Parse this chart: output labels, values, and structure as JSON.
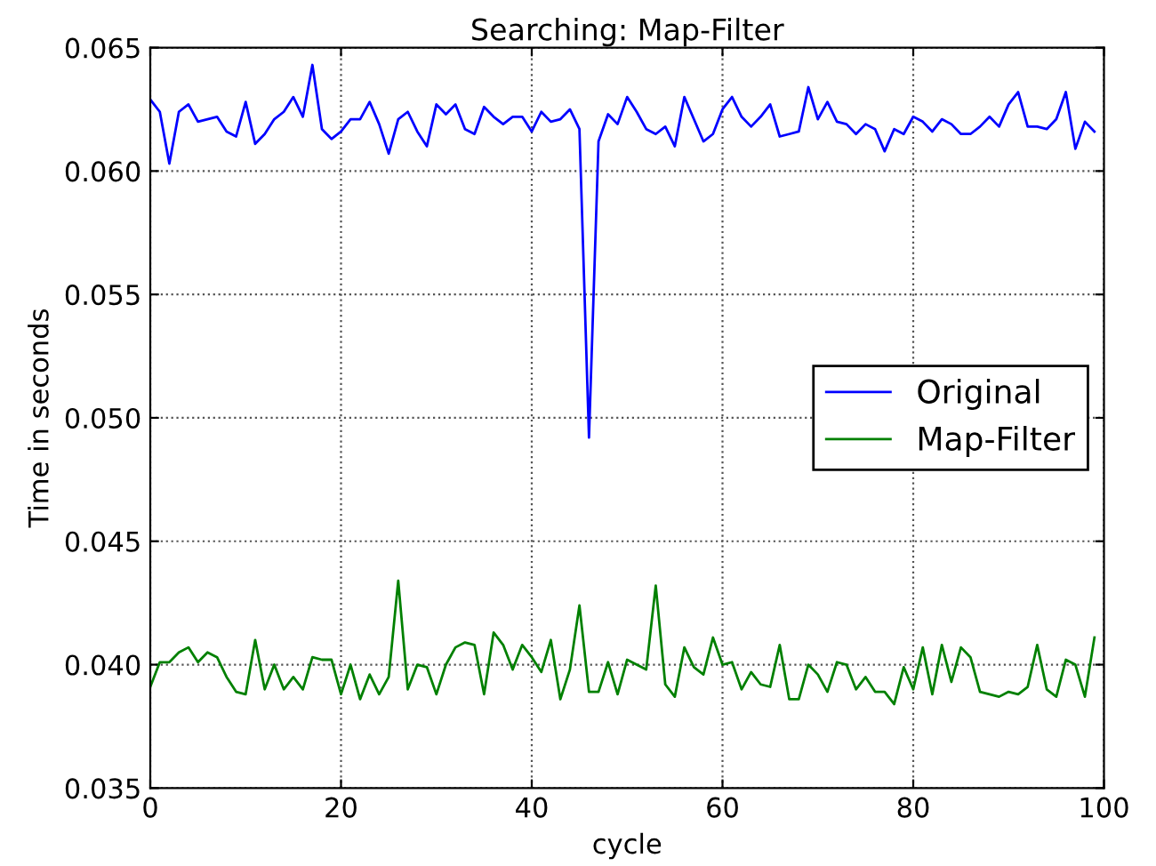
{
  "chart_data": {
    "type": "line",
    "title": "Searching: Map-Filter",
    "xlabel": "cycle",
    "ylabel": "Time in seconds",
    "x": [
      0,
      1,
      2,
      3,
      4,
      5,
      6,
      7,
      8,
      9,
      10,
      11,
      12,
      13,
      14,
      15,
      16,
      17,
      18,
      19,
      20,
      21,
      22,
      23,
      24,
      25,
      26,
      27,
      28,
      29,
      30,
      31,
      32,
      33,
      34,
      35,
      36,
      37,
      38,
      39,
      40,
      41,
      42,
      43,
      44,
      45,
      46,
      47,
      48,
      49,
      50,
      51,
      52,
      53,
      54,
      55,
      56,
      57,
      58,
      59,
      60,
      61,
      62,
      63,
      64,
      65,
      66,
      67,
      68,
      69,
      70,
      71,
      72,
      73,
      74,
      75,
      76,
      77,
      78,
      79,
      80,
      81,
      82,
      83,
      84,
      85,
      86,
      87,
      88,
      89,
      90,
      91,
      92,
      93,
      94,
      95,
      96,
      97,
      98,
      99
    ],
    "series": [
      {
        "name": "Original",
        "color": "#0000ff",
        "values": [
          0.0629,
          0.0624,
          0.0603,
          0.0624,
          0.0627,
          0.062,
          0.0621,
          0.0622,
          0.0616,
          0.0614,
          0.0628,
          0.0611,
          0.0615,
          0.0621,
          0.0624,
          0.063,
          0.0622,
          0.0643,
          0.0617,
          0.0613,
          0.0616,
          0.0621,
          0.0621,
          0.0628,
          0.0619,
          0.0607,
          0.0621,
          0.0624,
          0.0616,
          0.061,
          0.0627,
          0.0623,
          0.0627,
          0.0617,
          0.0615,
          0.0626,
          0.0622,
          0.0619,
          0.0622,
          0.0622,
          0.0616,
          0.0624,
          0.062,
          0.0621,
          0.0625,
          0.0617,
          0.0492,
          0.0612,
          0.0623,
          0.0619,
          0.063,
          0.0624,
          0.0617,
          0.0615,
          0.0618,
          0.061,
          0.063,
          0.0621,
          0.0612,
          0.0615,
          0.0625,
          0.063,
          0.0622,
          0.0618,
          0.0622,
          0.0627,
          0.0614,
          0.0615,
          0.0616,
          0.0634,
          0.0621,
          0.0628,
          0.062,
          0.0619,
          0.0615,
          0.0619,
          0.0617,
          0.0608,
          0.0617,
          0.0615,
          0.0622,
          0.062,
          0.0616,
          0.0621,
          0.0619,
          0.0615,
          0.0615,
          0.0618,
          0.0622,
          0.0618,
          0.0627,
          0.0632,
          0.0618,
          0.0618,
          0.0617,
          0.0621,
          0.0632,
          0.0609,
          0.062,
          0.0616
        ]
      },
      {
        "name": "Map-Filter",
        "color": "#008000",
        "values": [
          0.0391,
          0.0401,
          0.0401,
          0.0405,
          0.0407,
          0.0401,
          0.0405,
          0.0403,
          0.0395,
          0.0389,
          0.0388,
          0.041,
          0.039,
          0.04,
          0.039,
          0.0395,
          0.039,
          0.0403,
          0.0402,
          0.0402,
          0.0388,
          0.04,
          0.0386,
          0.0396,
          0.0388,
          0.0395,
          0.0434,
          0.039,
          0.04,
          0.0399,
          0.0388,
          0.04,
          0.0407,
          0.0409,
          0.0408,
          0.0388,
          0.0413,
          0.0408,
          0.0398,
          0.0408,
          0.0403,
          0.0397,
          0.041,
          0.0386,
          0.0398,
          0.0424,
          0.0389,
          0.0389,
          0.0401,
          0.0388,
          0.0402,
          0.04,
          0.0398,
          0.0432,
          0.0392,
          0.0387,
          0.0407,
          0.0399,
          0.0396,
          0.0411,
          0.04,
          0.0401,
          0.039,
          0.0397,
          0.0392,
          0.0391,
          0.0408,
          0.0386,
          0.0386,
          0.04,
          0.0396,
          0.0389,
          0.0401,
          0.04,
          0.039,
          0.0395,
          0.0389,
          0.0389,
          0.0384,
          0.0399,
          0.039,
          0.0407,
          0.0388,
          0.0408,
          0.0393,
          0.0407,
          0.0403,
          0.0389,
          0.0388,
          0.0387,
          0.0389,
          0.0388,
          0.0391,
          0.0408,
          0.039,
          0.0387,
          0.0402,
          0.04,
          0.0387,
          0.0411
        ]
      }
    ],
    "xlim": [
      0,
      100
    ],
    "xticks": [
      0,
      20,
      40,
      60,
      80,
      100
    ],
    "ylim": [
      0.035,
      0.065
    ],
    "yticks": [
      {
        "value": 0.035,
        "label": "0.035"
      },
      {
        "value": 0.04,
        "label": "0.040"
      },
      {
        "value": 0.045,
        "label": "0.045"
      },
      {
        "value": 0.05,
        "label": "0.050"
      },
      {
        "value": 0.055,
        "label": "0.055"
      },
      {
        "value": 0.06,
        "label": "0.060"
      },
      {
        "value": 0.065,
        "label": "0.065"
      }
    ],
    "grid": true,
    "legend": "center right",
    "line_style": "solid",
    "marker": "none"
  }
}
